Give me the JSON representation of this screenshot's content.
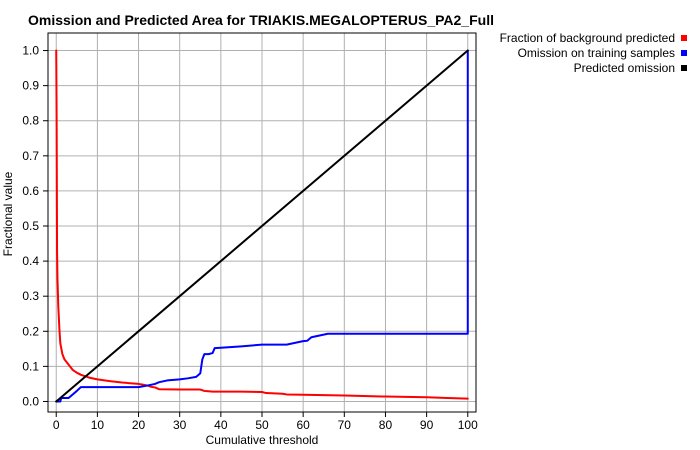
{
  "chart_data": {
    "type": "line",
    "title": "Omission and Predicted Area for TRIAKIS.MEGALOPTERUS_PA2_Full",
    "xlabel": "Cumulative threshold",
    "ylabel": "Fractional value",
    "xlim": [
      -2,
      102
    ],
    "ylim": [
      -0.03,
      1.05
    ],
    "xticks": [
      0,
      10,
      20,
      30,
      40,
      50,
      60,
      70,
      80,
      90,
      100
    ],
    "xtick_labels": [
      "0",
      "10",
      "20",
      "30",
      "40",
      "50",
      "60",
      "70",
      "80",
      "90",
      "100"
    ],
    "yticks": [
      0.0,
      0.1,
      0.2,
      0.3,
      0.4,
      0.5,
      0.6,
      0.7,
      0.8,
      0.9,
      1.0
    ],
    "ytick_labels": [
      "0.0",
      "0.1",
      "0.2",
      "0.3",
      "0.4",
      "0.5",
      "0.6",
      "0.7",
      "0.8",
      "0.9",
      "1.0"
    ],
    "grid": true,
    "legend_position": "top-right",
    "series": [
      {
        "name": "Fraction of background predicted",
        "color": "#ff0000",
        "x": [
          0,
          0.1,
          0.2,
          0.3,
          0.5,
          0.8,
          1,
          1.5,
          2,
          3,
          4,
          5,
          6,
          8,
          10,
          13,
          16,
          20,
          21,
          22,
          23,
          24,
          25,
          30,
          35,
          36,
          37,
          38,
          40,
          45,
          50,
          51,
          55,
          56,
          60,
          65,
          70,
          80,
          90,
          95,
          100
        ],
        "y": [
          1.0,
          0.8,
          0.43,
          0.35,
          0.27,
          0.2,
          0.165,
          0.135,
          0.12,
          0.105,
          0.09,
          0.082,
          0.076,
          0.068,
          0.063,
          0.058,
          0.054,
          0.05,
          0.048,
          0.046,
          0.042,
          0.04,
          0.035,
          0.034,
          0.034,
          0.03,
          0.029,
          0.028,
          0.028,
          0.028,
          0.027,
          0.024,
          0.022,
          0.02,
          0.019,
          0.018,
          0.017,
          0.014,
          0.012,
          0.01,
          0.008
        ]
      },
      {
        "name": "Omission on training samples",
        "color": "#0000ff",
        "x": [
          0,
          1,
          1.2,
          3,
          3.5,
          4,
          5,
          6,
          7,
          10,
          15,
          20,
          22,
          24,
          25,
          27,
          30,
          32,
          34,
          35,
          35.5,
          36,
          37,
          38,
          38.5,
          40,
          45,
          50,
          55,
          56,
          60,
          61,
          62,
          64,
          66,
          70,
          80,
          90,
          100,
          100
        ],
        "y": [
          0.0,
          0.0,
          0.01,
          0.01,
          0.015,
          0.02,
          0.03,
          0.041,
          0.041,
          0.041,
          0.041,
          0.041,
          0.045,
          0.05,
          0.055,
          0.06,
          0.063,
          0.066,
          0.07,
          0.08,
          0.12,
          0.135,
          0.135,
          0.138,
          0.152,
          0.153,
          0.157,
          0.162,
          0.162,
          0.162,
          0.172,
          0.173,
          0.183,
          0.188,
          0.193,
          0.193,
          0.193,
          0.193,
          0.193,
          1.0
        ]
      },
      {
        "name": "Predicted omission",
        "color": "#000000",
        "x": [
          0,
          100
        ],
        "y": [
          0.0,
          1.0
        ]
      }
    ]
  }
}
